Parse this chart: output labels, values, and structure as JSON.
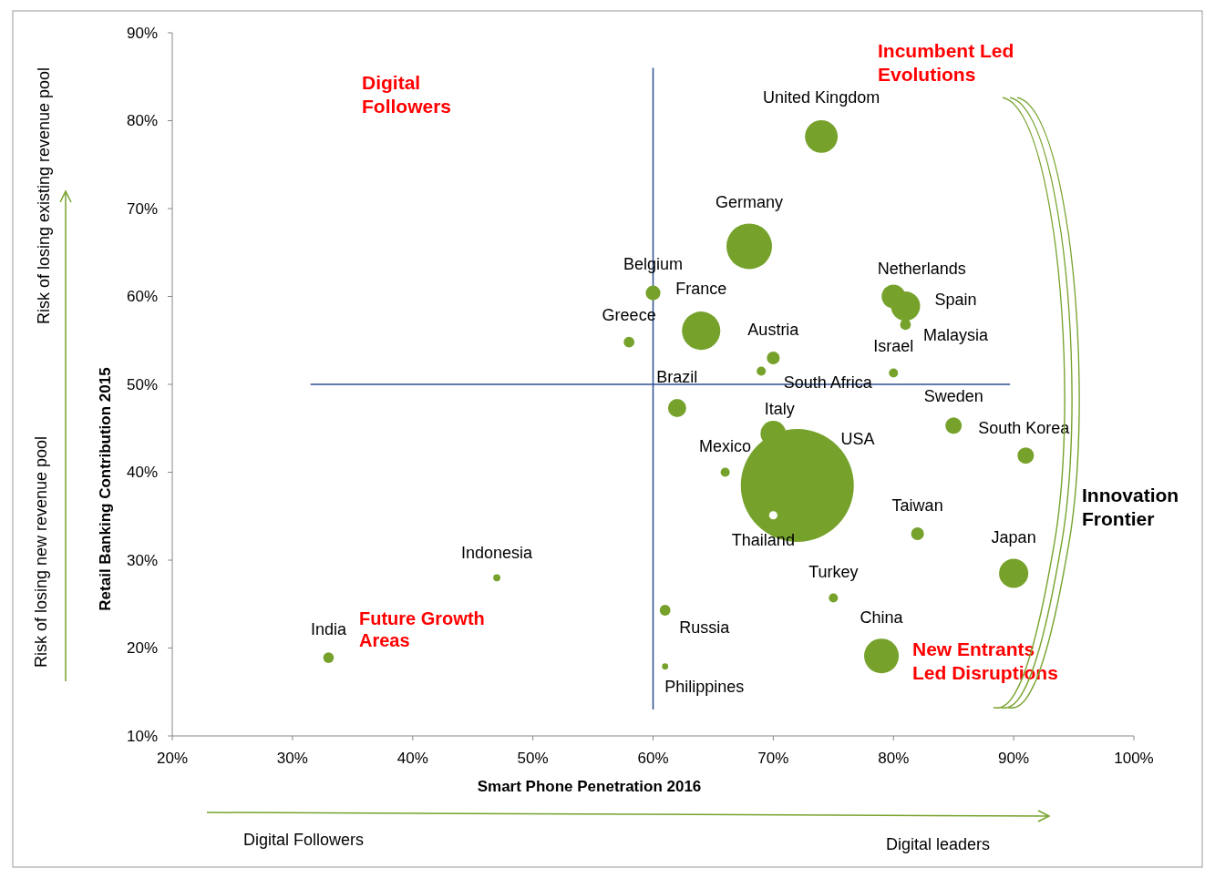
{
  "chart_data": {
    "type": "bubble",
    "xlabel": "Smart Phone Penetration 2016",
    "ylabel": "Retail Banking Contribution 2015",
    "x": [
      74,
      68,
      60,
      64,
      58,
      70,
      69,
      80,
      81,
      81,
      80,
      62,
      70,
      72,
      70,
      66,
      85,
      91,
      82,
      90,
      75,
      79,
      61,
      61,
      47,
      33
    ],
    "series": [
      {
        "color": "#76a22c",
        "colors": [
          "#76a22c",
          "#76a22c",
          "#76a22c",
          "#76a22c",
          "#76a22c",
          "#76a22c",
          "#76a22c",
          "#76a22c",
          "#76a22c",
          "#76a22c",
          "#76a22c",
          "#76a22c",
          "#76a22c",
          "#76a22c",
          "#ffffff",
          "#76a22c",
          "#76a22c",
          "#76a22c",
          "#76a22c",
          "#76a22c",
          "#76a22c",
          "#76a22c",
          "#76a22c",
          "#76a22c",
          "#76a22c",
          "#76a22c"
        ],
        "values": [
          78.2,
          65.7,
          60.4,
          56.1,
          54.8,
          53,
          51.5,
          60,
          58.9,
          56.8,
          51.3,
          47.3,
          44.4,
          38.5,
          35.1,
          40,
          45.3,
          41.9,
          33,
          28.5,
          25.7,
          19.1,
          24.3,
          17.9,
          28,
          18.9
        ],
        "sizes": [
          0.084,
          0.163,
          0.017,
          0.115,
          0.009,
          0.013,
          0.0065,
          0.044,
          0.067,
          0.009,
          0.0065,
          0.026,
          0.051,
          1,
          0.0065,
          0.0065,
          0.021,
          0.021,
          0.013,
          0.067,
          0.0065,
          0.094,
          0.009,
          0.003,
          0.004,
          0.009
        ]
      }
    ],
    "xlim": [
      20,
      100
    ],
    "xticks": [
      {
        "value": 20,
        "label": "20%"
      },
      {
        "value": 30,
        "label": "30%"
      },
      {
        "value": 40,
        "label": "40%"
      },
      {
        "value": 50,
        "label": "50%"
      },
      {
        "value": 60,
        "label": "60%"
      },
      {
        "value": 70,
        "label": "70%"
      },
      {
        "value": 80,
        "label": "80%"
      },
      {
        "value": 90,
        "label": "90%"
      },
      {
        "value": 100,
        "label": "100%"
      }
    ],
    "ylim": [
      10,
      90
    ],
    "yticks": [
      {
        "value": 10,
        "label": "10%"
      },
      {
        "value": 20,
        "label": "20%"
      },
      {
        "value": 30,
        "label": "30%"
      },
      {
        "value": 40,
        "label": "40%"
      },
      {
        "value": 50,
        "label": "50%"
      },
      {
        "value": 60,
        "label": "60%"
      },
      {
        "value": 70,
        "label": "70%"
      },
      {
        "value": 80,
        "label": "80%"
      },
      {
        "value": 90,
        "label": "90%"
      }
    ],
    "ref_lines": [
      {
        "axis": "x",
        "value": 60,
        "color": "#2f4f8f"
      },
      {
        "axis": "y",
        "value": 50,
        "color": "#2f4f8f"
      }
    ],
    "annotations": [
      {
        "text": "United Kingdom",
        "x": 74,
        "y": 78.2
      },
      {
        "text": "Germany",
        "x": 68,
        "y": 65.7
      },
      {
        "text": "Belgium",
        "x": 60,
        "y": 60.4
      },
      {
        "text": "France",
        "x": 64,
        "y": 56.1
      },
      {
        "text": "Greece",
        "x": 58,
        "y": 54.8
      },
      {
        "text": "Austria",
        "x": 70,
        "y": 53
      },
      {
        "text": "South Africa",
        "x": 69,
        "y": 51.5
      },
      {
        "text": "Netherlands",
        "x": 80,
        "y": 60
      },
      {
        "text": "Spain",
        "x": 81,
        "y": 58.9
      },
      {
        "text": "Malaysia",
        "x": 81,
        "y": 56.8
      },
      {
        "text": "Israel",
        "x": 80,
        "y": 51.3
      },
      {
        "text": "Brazil",
        "x": 62,
        "y": 47.3
      },
      {
        "text": "Italy",
        "x": 70,
        "y": 44.4
      },
      "USA",
      {
        "text": "Thailand",
        "x": 70,
        "y": 35.1
      },
      {
        "text": "Mexico",
        "x": 66,
        "y": 40
      },
      {
        "text": "Sweden",
        "x": 85,
        "y": 45.3
      },
      {
        "text": "South Korea",
        "x": 91,
        "y": 41.9
      },
      {
        "text": "Taiwan",
        "x": 82,
        "y": 33
      },
      {
        "text": "Japan",
        "x": 90,
        "y": 28.5
      },
      {
        "text": "Turkey",
        "x": 75,
        "y": 25.7
      },
      {
        "text": "China",
        "x": 79,
        "y": 19.1
      },
      {
        "text": "Russia",
        "x": 61,
        "y": 24.3
      },
      {
        "text": "Philippines",
        "x": 61,
        "y": 17.9
      },
      {
        "text": "Indonesia",
        "x": 47,
        "y": 28
      },
      {
        "text": "India",
        "x": 33,
        "y": 18.9
      },
      "Incumbent Led\nEvolutions",
      "Digital\nFollowers",
      "Future Growth\nAreas",
      "New Entrants\nLed Disruptions",
      "Innovation\nFrontier",
      "Risk of losing existing revenue pool",
      "Risk of losing new revenue pool",
      "Digital Followers",
      "Digital leaders"
    ]
  }
}
